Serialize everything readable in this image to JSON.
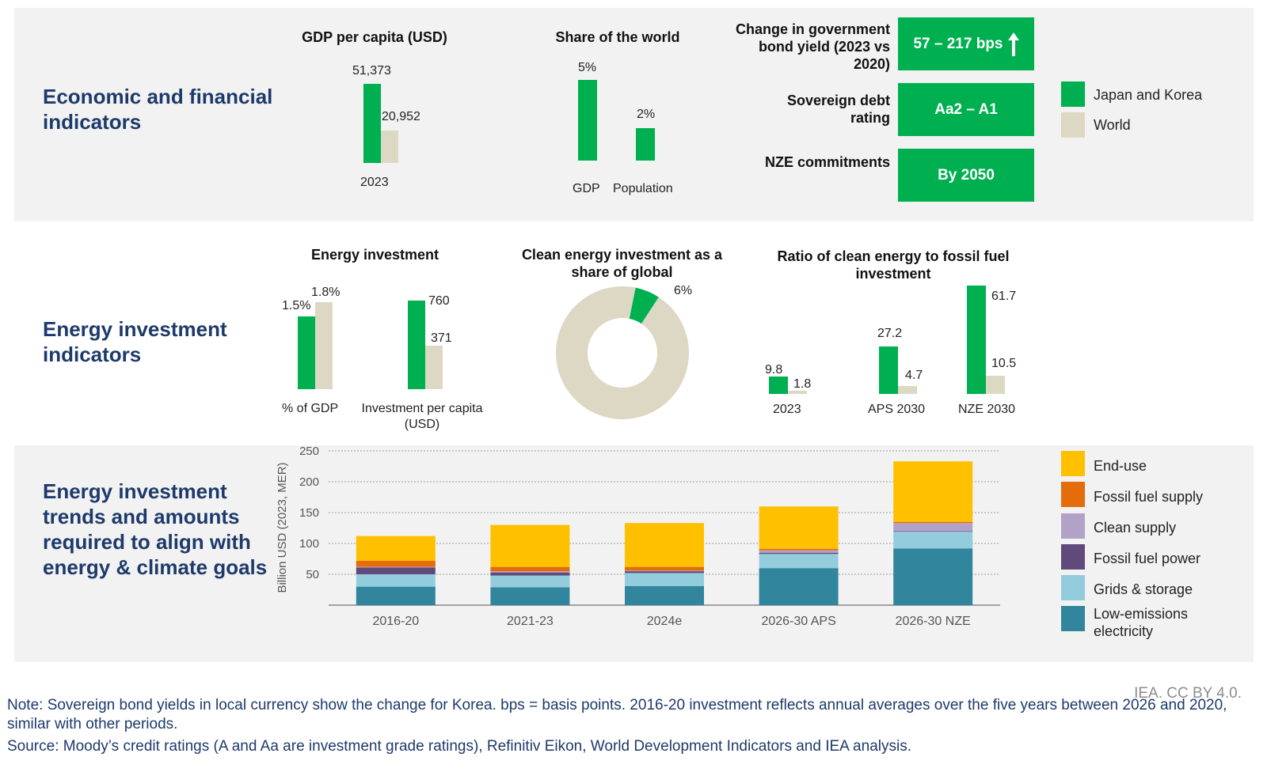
{
  "colors": {
    "japan_korea": "#00b050",
    "world": "#ddd8c4",
    "end_use": "#ffc000",
    "fossil_fuel_supply": "#e46c0a",
    "clean_supply": "#b3a2c7",
    "fossil_fuel_power": "#604a7b",
    "grids_storage": "#93cddd",
    "low_emissions": "#31859c",
    "navy": "#1d3a6b"
  },
  "sections": {
    "economic": "Economic and financial indicators",
    "energy_investment": "Energy investment indicators",
    "trends": "Energy investment trends and amounts required to align with energy & climate goals"
  },
  "gdp_per_capita": {
    "title": "GDP per capita (USD)",
    "category": "2023",
    "japan_korea": 51373,
    "world": 20952,
    "japan_korea_label": "51,373",
    "world_label": "20,952"
  },
  "share_world": {
    "title": "Share of the world",
    "categories": [
      "GDP",
      "Population"
    ],
    "values": [
      5,
      2
    ],
    "labels": [
      "5%",
      "2%"
    ]
  },
  "kpis": [
    {
      "label": "Change in government bond yield (2023 vs 2020)",
      "value": "57 – 217 bps",
      "icon": "arrow-up-icon"
    },
    {
      "label": "Sovereign debt rating",
      "value": "Aa2 – A1"
    },
    {
      "label": "NZE commitments",
      "value": "By 2050"
    }
  ],
  "legend_top": [
    "Japan and Korea",
    "World"
  ],
  "energy_investment": {
    "title": "Energy investment",
    "groups": [
      {
        "name": "% of GDP",
        "japan_korea": 1.5,
        "world": 1.8,
        "jk_label": "1.5%",
        "w_label": "1.8%"
      },
      {
        "name": "Investment per capita (USD)",
        "japan_korea": 760,
        "world": 371,
        "jk_label": "760",
        "w_label": "371"
      }
    ]
  },
  "clean_share": {
    "title": "Clean energy investment as a share of global",
    "value": 6,
    "label": "6%"
  },
  "ratio": {
    "title": "Ratio of clean energy to fossil fuel investment",
    "categories": [
      "2023",
      "APS 2030",
      "NZE 2030"
    ],
    "japan_korea": [
      9.8,
      27.2,
      61.7
    ],
    "world": [
      1.8,
      4.7,
      10.5
    ],
    "jk_labels": [
      "9.8",
      "27.2",
      "61.7"
    ],
    "w_labels": [
      "1.8",
      "4.7",
      "10.5"
    ]
  },
  "chart_data": {
    "type": "bar",
    "stacked": true,
    "categories": [
      "2016-20",
      "2021-23",
      "2024e",
      "2026-30 APS",
      "2026-30 NZE"
    ],
    "ylabel": "Billion USD (2023, MER)",
    "ylim": [
      0,
      250
    ],
    "yticks": [
      50,
      100,
      150,
      200,
      250
    ],
    "grid": true,
    "legend_placement": "right",
    "series": [
      {
        "name": "Low-emissions electricity",
        "color": "#31859c",
        "values": [
          30,
          29,
          31,
          60,
          92
        ]
      },
      {
        "name": "Grids & storage",
        "color": "#93cddd",
        "values": [
          20,
          19,
          21,
          23,
          27
        ]
      },
      {
        "name": "Fossil fuel power",
        "color": "#604a7b",
        "values": [
          11,
          5,
          3,
          2,
          1
        ]
      },
      {
        "name": "Clean supply",
        "color": "#b3a2c7",
        "values": [
          1,
          2,
          1,
          4,
          13
        ]
      },
      {
        "name": "Fossil fuel supply",
        "color": "#e46c0a",
        "values": [
          10,
          7,
          6,
          2,
          2
        ]
      },
      {
        "name": "End-use",
        "color": "#ffc000",
        "values": [
          40,
          68,
          71,
          69,
          98
        ]
      }
    ]
  },
  "legend_bottom": [
    "End-use",
    "Fossil fuel supply",
    "Clean supply",
    "Fossil fuel power",
    "Grids & storage",
    "Low-emissions electricity"
  ],
  "credit": "IEA.  CC BY 4.0.",
  "note": "Note: Sovereign bond yields in local currency show the change for Korea. bps = basis points. 2016-20 investment reflects annual averages over the five years between 2026 and 2020, similar with other periods.",
  "source": "Source: Moody’s credit ratings (A and Aa are investment grade ratings), Refinitiv Eikon, World Development Indicators and IEA analysis."
}
